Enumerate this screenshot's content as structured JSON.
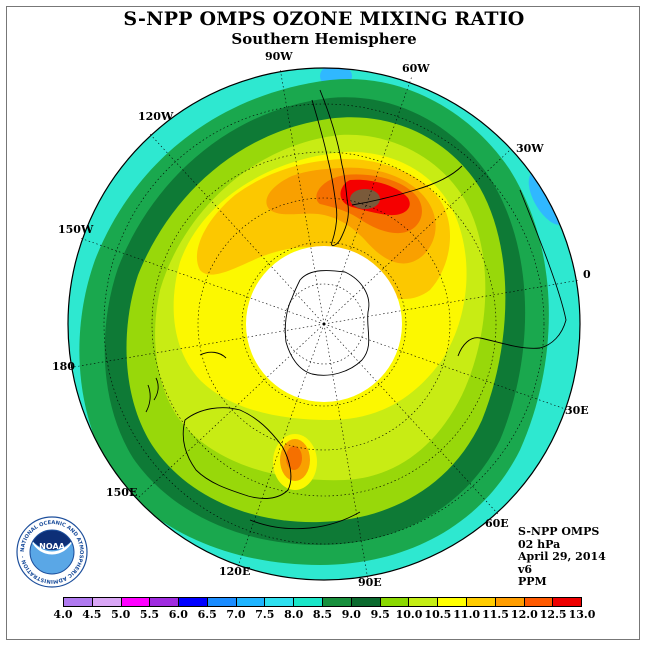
{
  "title": "S-NPP OMPS OZONE MIXING RATIO",
  "subtitle": "Southern Hemisphere",
  "longitude_labels": [
    "90W",
    "60W",
    "30W",
    "0",
    "30E",
    "60E",
    "90E",
    "120E",
    "150E",
    "180",
    "150W",
    "120W"
  ],
  "info": {
    "instrument": "S-NPP OMPS",
    "level": "02 hPa",
    "date": "April 29, 2014",
    "version": "v6",
    "units": "PPM"
  },
  "colorbar": {
    "labels": [
      "4.0",
      "4.5",
      "5.0",
      "5.5",
      "6.0",
      "6.5",
      "7.0",
      "7.5",
      "8.0",
      "8.5",
      "9.0",
      "9.5",
      "10.0",
      "10.5",
      "11.0",
      "11.5",
      "12.0",
      "12.5",
      "13.0"
    ],
    "colors": [
      "#b07af0",
      "#d9a6f5",
      "#ff00ff",
      "#a02ce0",
      "#0000ff",
      "#1a8cff",
      "#1eb4ff",
      "#2ee0f0",
      "#1ae6c8",
      "#178f3c",
      "#0b6a2e",
      "#8ad800",
      "#c4ee14",
      "#ffff00",
      "#ffcc00",
      "#ff9d00",
      "#ff5a00",
      "#ee0000",
      "#7a5a3a"
    ]
  },
  "logo": {
    "text": "NOAA",
    "ring_text": "NATIONAL OCEANIC AND ATMOSPHERIC ADMINISTRATION · U.S. DEPARTMENT OF COMMERCE"
  },
  "colors": {
    "c7_5": "#2ee8d0",
    "c8_0": "#1aa84e",
    "c8_5": "#0e7a36",
    "c9_0": "#98d80a",
    "c9_5": "#c8ec14",
    "c10_0": "#fcf800",
    "c10_5": "#fcc800",
    "c11_0": "#f9a000",
    "c11_5": "#f57000",
    "c12_0": "#f50000",
    "c12_5": "#7a5a3a",
    "c7_0": "#30b8ff"
  }
}
